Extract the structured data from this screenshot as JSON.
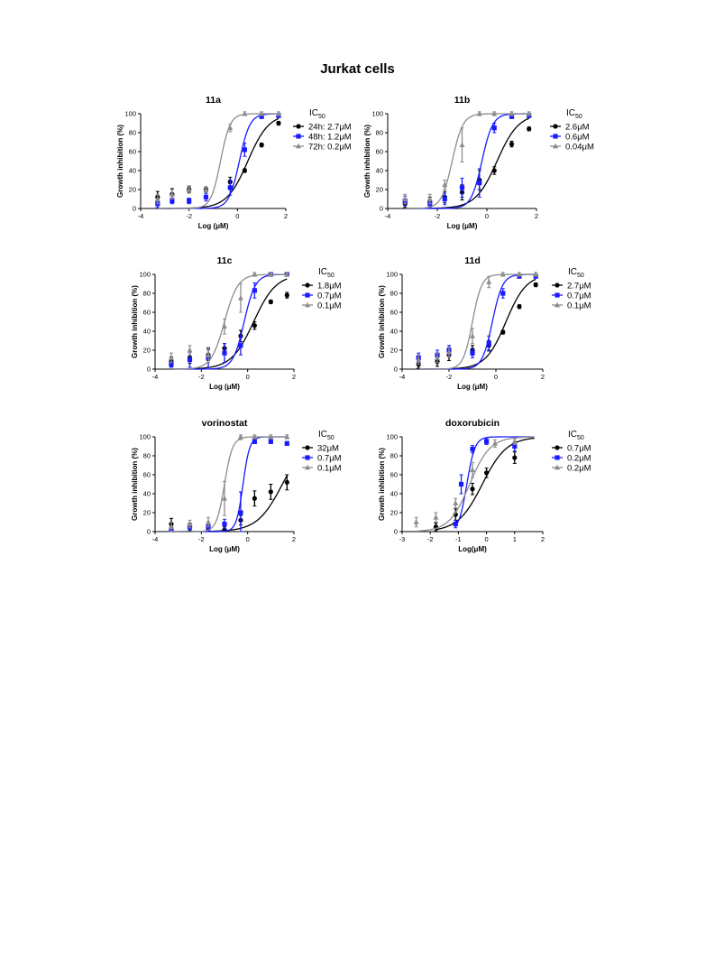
{
  "page_title": "Jurkat cells",
  "colors": {
    "black": "#000000",
    "blue": "#1a1aff",
    "gray": "#8c8c8c"
  },
  "chart_data": [
    {
      "type": "scatter",
      "title": "11a",
      "xlabel": "Log (μM)",
      "ylabel": "Growth inhibition (%)",
      "xlim": [
        -4,
        2
      ],
      "ylim": [
        0,
        100
      ],
      "xticks": [
        "-4",
        "-2",
        "0",
        "2"
      ],
      "yticks": [
        "0",
        "20",
        "40",
        "60",
        "80",
        "100"
      ],
      "legend_title": "IC50",
      "series": [
        {
          "name": "24h: 2.7μM",
          "color": "black",
          "marker": "circle",
          "ic50_log": 0.43,
          "hill": 1.0,
          "x": [
            -3.3,
            -2.7,
            -2.0,
            -1.3,
            -0.3,
            0.3,
            1.0,
            1.7
          ],
          "y": [
            12,
            15,
            20,
            20,
            28,
            40,
            67,
            90
          ],
          "err": [
            6,
            6,
            3,
            3,
            5,
            2,
            2,
            2
          ]
        },
        {
          "name": "48h: 1.2μM",
          "color": "blue",
          "marker": "square",
          "ic50_log": 0.08,
          "hill": 2.0,
          "x": [
            -3.3,
            -2.7,
            -2.0,
            -1.3,
            -0.3,
            0.3,
            1.0,
            1.7
          ],
          "y": [
            5,
            8,
            8,
            12,
            22,
            62,
            97,
            98
          ],
          "err": [
            4,
            3,
            3,
            4,
            8,
            7,
            2,
            2
          ]
        },
        {
          "name": "72h: 0.2μM",
          "color": "gray",
          "marker": "triangle",
          "ic50_log": -0.7,
          "hill": 2.2,
          "x": [
            -3.3,
            -2.7,
            -2.0,
            -1.3,
            -0.3,
            0.3,
            1.0,
            1.7
          ],
          "y": [
            10,
            15,
            20,
            20,
            85,
            100,
            100,
            100
          ],
          "err": [
            5,
            5,
            4,
            3,
            4,
            2,
            2,
            2
          ]
        }
      ]
    },
    {
      "type": "scatter",
      "title": "11b",
      "xlabel": "Log (μM)",
      "ylabel": "Growth inhibition (%)",
      "xlim": [
        -4,
        2
      ],
      "ylim": [
        0,
        100
      ],
      "xticks": [
        "-4",
        "-2",
        "0",
        "2"
      ],
      "yticks": [
        "0",
        "20",
        "40",
        "60",
        "80",
        "100"
      ],
      "legend_title": "IC50",
      "series": [
        {
          "name": "2.6μM",
          "color": "black",
          "marker": "circle",
          "ic50_log": 0.41,
          "hill": 1.0,
          "x": [
            -3.3,
            -2.3,
            -1.7,
            -1.0,
            -0.3,
            0.3,
            1.0,
            1.7
          ],
          "y": [
            5,
            8,
            12,
            17,
            30,
            40,
            68,
            84
          ],
          "err": [
            4,
            4,
            6,
            8,
            10,
            4,
            3,
            2
          ]
        },
        {
          "name": "0.6μM",
          "color": "blue",
          "marker": "square",
          "ic50_log": -0.2,
          "hill": 2.0,
          "x": [
            -3.3,
            -2.3,
            -1.7,
            -1.0,
            -0.3,
            0.3,
            1.0,
            1.7
          ],
          "y": [
            8,
            5,
            10,
            22,
            27,
            85,
            97,
            98
          ],
          "err": [
            5,
            4,
            6,
            10,
            15,
            5,
            2,
            2
          ]
        },
        {
          "name": "0.04μM",
          "color": "gray",
          "marker": "triangle",
          "ic50_log": -1.4,
          "hill": 2.0,
          "x": [
            -3.3,
            -2.3,
            -1.7,
            -1.0,
            -0.3,
            0.3,
            1.0,
            1.7
          ],
          "y": [
            10,
            10,
            25,
            67,
            100,
            100,
            100,
            100
          ],
          "err": [
            5,
            5,
            5,
            18,
            2,
            2,
            2,
            2
          ]
        }
      ]
    },
    {
      "type": "scatter",
      "title": "11c",
      "xlabel": "Log (μM)",
      "ylabel": "Growth inhibition (%)",
      "xlim": [
        -4,
        2
      ],
      "ylim": [
        0,
        100
      ],
      "xticks": [
        "-4",
        "-2",
        "0",
        "2"
      ],
      "yticks": [
        "0",
        "20",
        "40",
        "60",
        "80",
        "100"
      ],
      "legend_title": "IC50",
      "series": [
        {
          "name": "1.8μM",
          "color": "black",
          "marker": "circle",
          "ic50_log": 0.26,
          "hill": 0.9,
          "x": [
            -3.3,
            -2.5,
            -1.7,
            -1.0,
            -0.3,
            0.3,
            1.0,
            1.7
          ],
          "y": [
            8,
            12,
            15,
            22,
            35,
            46,
            71,
            78
          ],
          "err": [
            5,
            6,
            6,
            5,
            6,
            4,
            2,
            3
          ]
        },
        {
          "name": "0.7μM",
          "color": "blue",
          "marker": "square",
          "ic50_log": -0.15,
          "hill": 1.8,
          "x": [
            -3.3,
            -2.5,
            -1.7,
            -1.0,
            -0.3,
            0.3,
            1.0,
            1.7
          ],
          "y": [
            5,
            10,
            12,
            17,
            25,
            83,
            100,
            100
          ],
          "err": [
            3,
            8,
            10,
            10,
            10,
            8,
            2,
            2
          ]
        },
        {
          "name": "0.1μM",
          "color": "gray",
          "marker": "triangle",
          "ic50_log": -1.0,
          "hill": 1.5,
          "x": [
            -3.3,
            -2.5,
            -1.7,
            -1.0,
            -0.3,
            0.3,
            1.0,
            1.7
          ],
          "y": [
            12,
            20,
            15,
            45,
            75,
            100,
            100,
            100
          ],
          "err": [
            5,
            5,
            8,
            8,
            15,
            2,
            2,
            2
          ]
        }
      ]
    },
    {
      "type": "scatter",
      "title": "11d",
      "xlabel": "Log (μM)",
      "ylabel": "Growth inhibition (%)",
      "xlim": [
        -4,
        2
      ],
      "ylim": [
        0,
        100
      ],
      "xticks": [
        "-4",
        "-2",
        "0",
        "2"
      ],
      "yticks": [
        "0",
        "20",
        "40",
        "60",
        "80",
        "100"
      ],
      "legend_title": "IC50",
      "series": [
        {
          "name": "2.7μM",
          "color": "black",
          "marker": "circle",
          "ic50_log": 0.43,
          "hill": 1.0,
          "x": [
            -3.3,
            -2.5,
            -2.0,
            -1.0,
            -0.3,
            0.3,
            1.0,
            1.7
          ],
          "y": [
            5,
            8,
            15,
            20,
            25,
            39,
            66,
            89
          ],
          "err": [
            4,
            5,
            6,
            5,
            5,
            2,
            2,
            2
          ]
        },
        {
          "name": "0.7μM",
          "color": "blue",
          "marker": "square",
          "ic50_log": -0.15,
          "hill": 2.0,
          "x": [
            -3.3,
            -2.5,
            -2.0,
            -1.0,
            -0.3,
            0.3,
            1.0,
            1.7
          ],
          "y": [
            12,
            15,
            20,
            17,
            27,
            80,
            98,
            98
          ],
          "err": [
            5,
            5,
            5,
            5,
            8,
            5,
            2,
            2
          ]
        },
        {
          "name": "0.1μM",
          "color": "gray",
          "marker": "triangle",
          "ic50_log": -1.0,
          "hill": 2.2,
          "x": [
            -3.3,
            -2.5,
            -2.0,
            -1.0,
            -0.3,
            0.3,
            1.0,
            1.7
          ],
          "y": [
            10,
            12,
            18,
            35,
            92,
            100,
            100,
            100
          ],
          "err": [
            5,
            5,
            5,
            8,
            6,
            2,
            2,
            2
          ]
        }
      ]
    },
    {
      "type": "scatter",
      "title": "vorinostat",
      "xlabel": "Log (μM)",
      "ylabel": "Growth inhibition (%)",
      "xlim": [
        -4,
        2
      ],
      "ylim": [
        0,
        100
      ],
      "xticks": [
        "-4",
        "-2",
        "0",
        "2"
      ],
      "yticks": [
        "0",
        "20",
        "40",
        "60",
        "80",
        "100"
      ],
      "legend_title": "IC50",
      "series": [
        {
          "name": "32μM",
          "color": "black",
          "marker": "circle",
          "ic50_log": 1.5,
          "hill": 0.8,
          "x": [
            -3.3,
            -2.5,
            -1.7,
            -1.0,
            -0.3,
            0.3,
            1.0,
            1.7
          ],
          "y": [
            8,
            5,
            3,
            2,
            12,
            35,
            42,
            52
          ],
          "err": [
            6,
            4,
            3,
            3,
            5,
            8,
            8,
            8
          ]
        },
        {
          "name": "0.7μM",
          "color": "blue",
          "marker": "square",
          "ic50_log": -0.2,
          "hill": 3.0,
          "x": [
            -3.3,
            -2.5,
            -1.7,
            -1.0,
            -0.3,
            0.3,
            1.0,
            1.7
          ],
          "y": [
            2,
            5,
            5,
            8,
            20,
            95,
            95,
            93
          ],
          "err": [
            3,
            3,
            4,
            5,
            22,
            2,
            2,
            2
          ]
        },
        {
          "name": "0.1μM",
          "color": "gray",
          "marker": "triangle",
          "ic50_log": -1.0,
          "hill": 2.5,
          "x": [
            -3.3,
            -2.5,
            -1.7,
            -1.0,
            -0.3,
            0.3,
            1.0,
            1.7
          ],
          "y": [
            5,
            8,
            10,
            35,
            100,
            100,
            100,
            100
          ],
          "err": [
            5,
            4,
            5,
            18,
            3,
            2,
            2,
            2
          ]
        }
      ]
    },
    {
      "type": "scatter",
      "title": "doxorubicin",
      "xlabel": "Log(μM)",
      "ylabel": "Growth inhibition (%)",
      "xlim": [
        -3,
        2
      ],
      "ylim": [
        0,
        100
      ],
      "xticks": [
        "-3",
        "-2",
        "-1",
        "0",
        "1",
        "2"
      ],
      "yticks": [
        "0",
        "20",
        "40",
        "60",
        "80",
        "100"
      ],
      "legend_title": "IC50",
      "series": [
        {
          "name": "0.7μM",
          "color": "black",
          "marker": "circle",
          "ic50_log": -0.15,
          "hill": 1.0,
          "x": [
            -1.8,
            -1.1,
            -0.5,
            0.0,
            1.0
          ],
          "y": [
            5,
            18,
            45,
            62,
            78
          ],
          "err": [
            4,
            6,
            6,
            5,
            6
          ]
        },
        {
          "name": "0.2μM",
          "color": "blue",
          "marker": "square",
          "ic50_log": -0.7,
          "hill": 3.0,
          "x": [
            -1.1,
            -0.9,
            -0.5,
            0.0,
            1.0
          ],
          "y": [
            8,
            50,
            87,
            95,
            90
          ],
          "err": [
            4,
            10,
            4,
            3,
            5
          ]
        },
        {
          "name": "0.2μM",
          "color": "gray",
          "marker": "triangle",
          "ic50_log": -0.6,
          "hill": 1.2,
          "x": [
            -2.5,
            -1.8,
            -1.1,
            -0.5,
            0.3,
            1.0
          ],
          "y": [
            10,
            15,
            30,
            65,
            93,
            95
          ],
          "err": [
            5,
            5,
            5,
            8,
            4,
            3
          ]
        }
      ]
    }
  ]
}
